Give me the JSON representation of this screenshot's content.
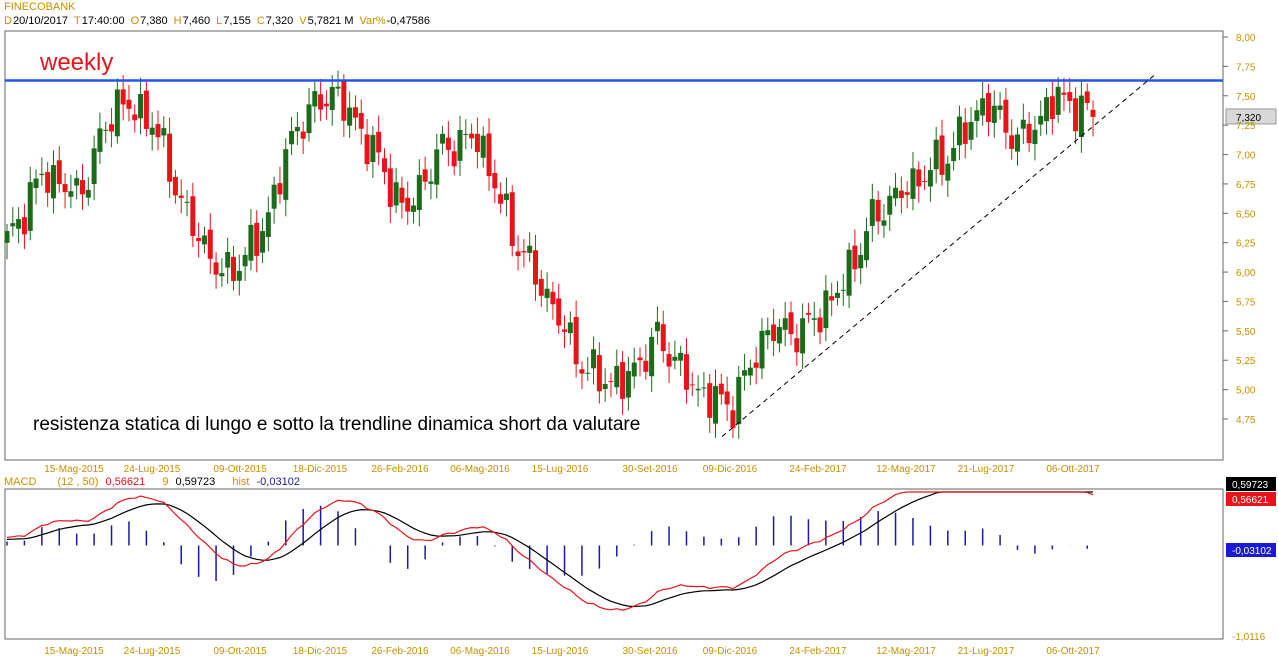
{
  "header": {
    "symbol": "FINECOBANK",
    "items": [
      {
        "label": "D",
        "value": "20/10/2017"
      },
      {
        "label": "T",
        "value": "17:40:00"
      },
      {
        "label": "O",
        "value": "7,380"
      },
      {
        "label": "H",
        "value": "7,460"
      },
      {
        "label": "L",
        "value": "7,155"
      },
      {
        "label": "C",
        "value": "7,320"
      },
      {
        "label": "V",
        "value": "5,7821 M"
      },
      {
        "label": "Var%",
        "value": "-0,47586"
      }
    ]
  },
  "macd_header": {
    "name": "MACD",
    "params": "(12 , 50)",
    "macd_value": "0,56621",
    "signal_label": "9",
    "signal_value": "0,59723",
    "hist_label": "hist",
    "hist_value": "-0,03102"
  },
  "annotations": {
    "weekly": "weekly",
    "comment": "resistenza statica di lungo e sotto la trendline dinamica short da valutare"
  },
  "colors": {
    "bull": "#1a6b1a",
    "bear": "#e8141a",
    "resistance": "#2255ee",
    "macd_line": "#e8141a",
    "signal_line": "#000000",
    "hist": "#1a1aa0",
    "axis_text": "#c49000"
  },
  "chart_data": [
    {
      "type": "candlestick",
      "title": "FINECOBANK",
      "timeframe": "weekly",
      "ylim": [
        4.5,
        8.0
      ],
      "y_ticks": [
        "8,00",
        "7,75",
        "7,50",
        "7,25",
        "7,00",
        "6,75",
        "6,50",
        "6,25",
        "6,00",
        "5,75",
        "5,50",
        "5,25",
        "5,00",
        "4,75"
      ],
      "x_ticks": [
        "15-Mag-2015",
        "24-Lug-2015",
        "09-Ott-2015",
        "18-Dic-2015",
        "26-Feb-2016",
        "06-Mag-2016",
        "15-Lug-2016",
        "30-Set-2016",
        "09-Dic-2016",
        "24-Feb-2017",
        "12-Mag-2017",
        "21-Lug-2017",
        "06-Ott-2017"
      ],
      "last_price_label": "7,320",
      "resistance_level": 7.63,
      "trendline": {
        "from": [
          "09-Dic-2016",
          4.6
        ],
        "to": [
          "2017-11",
          7.68
        ]
      },
      "close_anchors": [
        {
          "x": "2015-04",
          "close": 6.25
        },
        {
          "x": "15-Mag-2015",
          "close": 6.85
        },
        {
          "x": "2015-06",
          "close": 6.65
        },
        {
          "x": "24-Lug-2015",
          "close": 7.45
        },
        {
          "x": "2015-08",
          "close": 7.3
        },
        {
          "x": "2015-09",
          "close": 6.45
        },
        {
          "x": "09-Ott-2015",
          "close": 5.95
        },
        {
          "x": "2015-11",
          "close": 6.3
        },
        {
          "x": "18-Dic-2015",
          "close": 7.25
        },
        {
          "x": "2016-01",
          "close": 7.55
        },
        {
          "x": "2016-02",
          "close": 7.1
        },
        {
          "x": "26-Feb-2016",
          "close": 6.5
        },
        {
          "x": "2016-04",
          "close": 7.05
        },
        {
          "x": "06-Mag-2016",
          "close": 7.15
        },
        {
          "x": "2016-06",
          "close": 6.3
        },
        {
          "x": "15-Lug-2016",
          "close": 5.75
        },
        {
          "x": "2016-08",
          "close": 5.15
        },
        {
          "x": "30-Set-2016",
          "close": 5.05
        },
        {
          "x": "2016-10",
          "close": 5.45
        },
        {
          "x": "2016-11",
          "close": 5.0
        },
        {
          "x": "09-Dic-2016",
          "close": 4.85
        },
        {
          "x": "2017-01",
          "close": 5.5
        },
        {
          "x": "24-Feb-2017",
          "close": 5.5
        },
        {
          "x": "2017-03",
          "close": 5.85
        },
        {
          "x": "2017-04",
          "close": 6.5
        },
        {
          "x": "12-Mag-2017",
          "close": 6.75
        },
        {
          "x": "2017-06",
          "close": 7.0
        },
        {
          "x": "21-Lug-2017",
          "close": 7.45
        },
        {
          "x": "2017-08",
          "close": 7.1
        },
        {
          "x": "06-Ott-2017",
          "close": 7.5
        },
        {
          "x": "20/10/2017",
          "close": 7.32
        }
      ]
    },
    {
      "type": "line",
      "title": "MACD",
      "ylim": [
        -1.0116,
        0.59723
      ],
      "y_ticks": [
        "0,59723",
        "0,56621",
        "-0,03102",
        "-1,0116"
      ],
      "x_ticks": [
        "15-Mag-2015",
        "24-Lug-2015",
        "09-Ott-2015",
        "18-Dic-2015",
        "26-Feb-2016",
        "06-Mag-2016",
        "15-Lug-2016",
        "30-Set-2016",
        "09-Dic-2016",
        "24-Feb-2017",
        "12-Mag-2017",
        "21-Lug-2017",
        "06-Ott-2017"
      ],
      "series": [
        {
          "name": "MACD (12 , 50)",
          "last": 0.56621
        },
        {
          "name": "9",
          "last": 0.59723
        },
        {
          "name": "hist",
          "last": -0.03102
        }
      ]
    }
  ]
}
